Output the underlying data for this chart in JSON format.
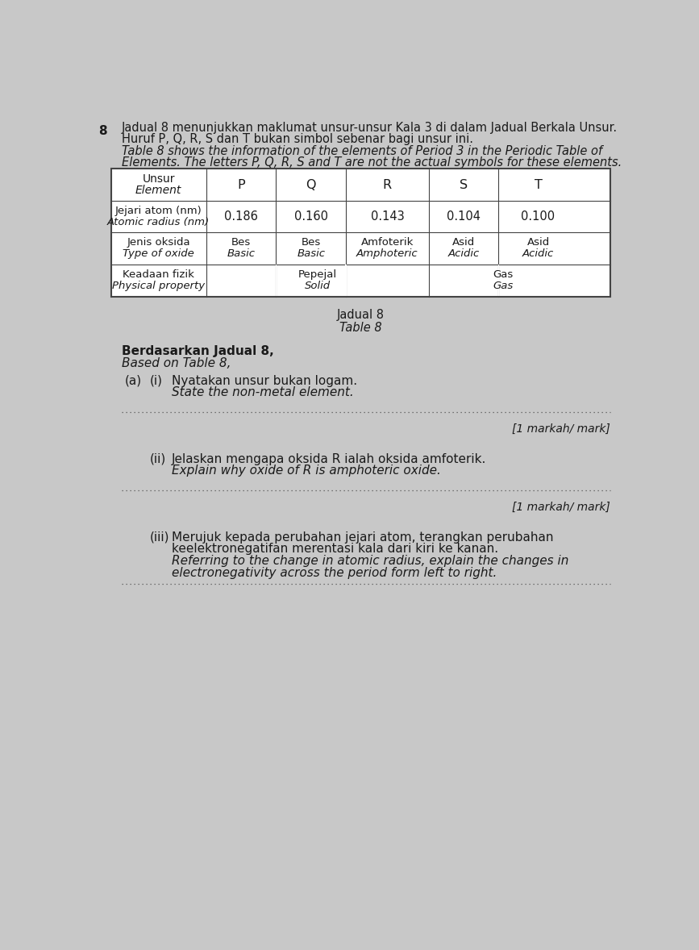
{
  "page_number": "8",
  "intro_text_line1": "Jadual 8 menunjukkan maklumat unsur-unsur Kala 3 di dalam Jadual Berkala Unsur.",
  "intro_text_line2": "Huruf P, Q, R, S dan T bukan simbol sebenar bagi unsur ini.",
  "intro_text_line3_italic": "Table 8 shows the information of the elements of Period 3 in the Periodic Table of",
  "intro_text_line4_italic": "Elements. The letters P, Q, R, S and T are not the actual symbols for these elements.",
  "table_caption1": "Jadual 8",
  "table_caption2": "Table 8",
  "table_headers": [
    "Unsur\nElement",
    "P",
    "Q",
    "R",
    "S",
    "T"
  ],
  "table_rows": [
    [
      "Jejari atom (nm)\nAtomic radius (nm)",
      "0.186",
      "0.160",
      "0.143",
      "0.104",
      "0.100"
    ],
    [
      "Jenis oksida\nType of oxide",
      "Bes\nBasic",
      "Bes\nBasic",
      "Amfoterik\nAmphoteric",
      "Asid\nAcidic",
      "Asid\nAcidic"
    ],
    [
      "Keadaan fizik\nPhysical property",
      "Pepejal\nSolid",
      "Gas\nGas"
    ]
  ],
  "section_line1": "Berdasarkan Jadual 8,",
  "section_line2": "Based on Table 8,",
  "qa_label": "(a)",
  "qi_label": "(i)",
  "qi_text_line1": "Nyatakan unsur bukan logam.",
  "qi_text_line2": "State the non-metal element.",
  "qi_mark": "[1 markah/ mark]",
  "qii_label": "(ii)",
  "qii_text_line1": "Jelaskan mengapa oksida R ialah oksida amfoterik.",
  "qii_text_line2": "Explain why oxide of R is amphoteric oxide.",
  "qii_mark": "[1 markah/ mark]",
  "qiii_label": "(iii)",
  "qiii_text_line1": "Merujuk kepada perubahan jejari atom, terangkan perubahan",
  "qiii_text_line2": "keelektronegatifan merentasi kala dari kiri ke kanan.",
  "qiii_text_line3": "Referring to the change in atomic radius, explain the changes in",
  "qiii_text_line4": "electronegativity across the period form left to right.",
  "bg_color": "#c8c8c8",
  "table_bg": "#ffffff",
  "text_color": "#1a1a1a",
  "table_border_color": "#444444"
}
